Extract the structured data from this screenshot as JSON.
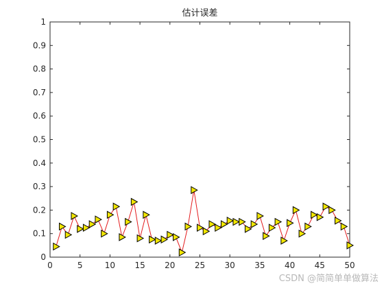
{
  "chart_data": {
    "type": "line",
    "title": "估计误差",
    "xlabel": "",
    "ylabel": "",
    "xlim": [
      0,
      50
    ],
    "ylim": [
      0,
      1
    ],
    "xticks": [
      0,
      5,
      10,
      15,
      20,
      25,
      30,
      35,
      40,
      45,
      50
    ],
    "yticks": [
      0,
      0.1,
      0.2,
      0.3,
      0.4,
      0.5,
      0.6,
      0.7,
      0.8,
      0.9,
      1
    ],
    "ytick_labels": [
      "0",
      "0.1",
      "0.2",
      "0.3",
      "0.4",
      "0.5",
      "0.6",
      "0.7",
      "0.8",
      "0.9",
      "1"
    ],
    "grid": false,
    "line_color": "#e31a1c",
    "marker": "triangle-right",
    "marker_fill": "#f2e600",
    "marker_edge": "#000000",
    "series": [
      {
        "x": [
          1,
          2,
          3,
          4,
          5,
          6,
          7,
          8,
          9,
          10,
          11,
          12,
          13,
          14,
          15,
          16,
          17,
          18,
          19,
          20,
          21,
          22,
          23,
          24,
          25,
          26,
          27,
          28,
          29,
          30,
          31,
          32,
          33,
          34,
          35,
          36,
          37,
          38,
          39,
          40,
          41,
          42,
          43,
          44,
          45,
          46,
          47,
          48,
          49,
          50
        ],
        "values": [
          0.045,
          0.13,
          0.095,
          0.175,
          0.12,
          0.125,
          0.14,
          0.16,
          0.1,
          0.18,
          0.215,
          0.085,
          0.15,
          0.235,
          0.08,
          0.18,
          0.075,
          0.07,
          0.075,
          0.095,
          0.085,
          0.02,
          0.13,
          0.285,
          0.125,
          0.11,
          0.14,
          0.125,
          0.14,
          0.155,
          0.15,
          0.15,
          0.12,
          0.14,
          0.175,
          0.09,
          0.125,
          0.15,
          0.07,
          0.145,
          0.2,
          0.1,
          0.13,
          0.18,
          0.17,
          0.215,
          0.2,
          0.155,
          0.13,
          0.05
        ]
      }
    ]
  },
  "watermark": "CSDN @简简单单做算法"
}
